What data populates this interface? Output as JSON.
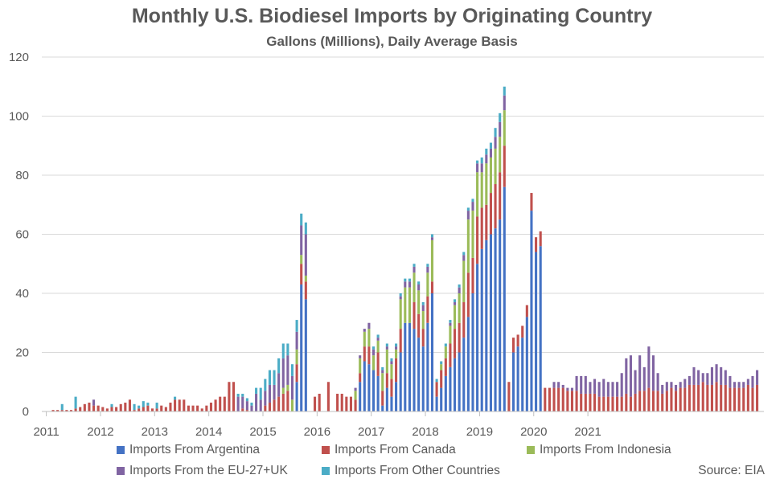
{
  "chart_data": {
    "type": "bar",
    "stacked": true,
    "title": "Monthly U.S. Biodiesel Imports by Originating Country",
    "subtitle": "Gallons (Millions), Daily Average Basis",
    "ylim": [
      0,
      120
    ],
    "yticks": [
      0,
      20,
      40,
      60,
      80,
      100,
      120
    ],
    "xticks": [
      "2011",
      "2012",
      "2013",
      "2014",
      "2015",
      "2016",
      "2017",
      "2018",
      "2019",
      "2020",
      "2021"
    ],
    "start": "2011-01",
    "grid": true,
    "legend_position": "bottom",
    "source": "Source: EIA",
    "series": [
      {
        "name": "Imports From Argentina",
        "color": "#4472C4",
        "values": [
          0,
          0,
          0,
          0,
          0,
          0,
          0,
          0,
          0,
          0,
          0,
          0,
          0,
          0,
          0,
          0,
          0,
          0,
          0,
          0,
          0,
          0,
          0,
          0,
          0,
          0,
          0,
          0,
          0,
          0,
          0,
          0,
          0,
          0,
          0,
          0,
          0,
          0,
          0,
          0,
          0,
          0,
          0,
          0,
          0,
          0,
          0,
          0,
          0,
          0,
          0,
          0,
          0,
          0,
          0,
          10,
          43,
          38,
          0,
          0,
          0,
          0,
          0,
          0,
          0,
          0,
          0,
          0,
          0,
          10,
          17,
          16,
          14,
          12,
          2,
          8,
          5,
          10,
          20,
          30,
          30,
          28,
          25,
          22,
          30,
          40,
          5,
          8,
          12,
          15,
          18,
          20,
          25,
          32,
          40,
          50,
          55,
          58,
          60,
          62,
          65,
          76,
          0,
          20,
          22,
          25,
          32,
          68,
          54,
          56,
          0,
          0,
          0,
          0,
          0,
          0,
          0,
          0,
          0,
          0,
          0,
          0,
          0,
          0,
          0,
          0,
          0,
          0,
          0,
          0,
          0,
          0,
          0,
          0,
          0,
          0,
          0,
          0,
          0,
          0,
          0,
          0,
          0,
          0,
          0,
          0,
          0,
          0,
          0,
          0,
          0,
          0,
          0,
          0,
          0,
          0,
          0,
          0
        ]
      },
      {
        "name": "Imports From Canada",
        "color": "#C0504D",
        "values": [
          0,
          0.5,
          0.5,
          0.5,
          0.5,
          0.5,
          1,
          1.5,
          2.5,
          3,
          2,
          2,
          1.5,
          1,
          1.5,
          1.5,
          2.5,
          3,
          4,
          0.5,
          1,
          1.5,
          2,
          1,
          1,
          2,
          1.5,
          3,
          4,
          4,
          4,
          2,
          2,
          2,
          1,
          2,
          3,
          4,
          5,
          5,
          10,
          10,
          0,
          1,
          0.5,
          0,
          0,
          0,
          2,
          3,
          4,
          5,
          6,
          7,
          0,
          6,
          7,
          6,
          0,
          5,
          6,
          0,
          10,
          0,
          6,
          6,
          5,
          5,
          4,
          3,
          5,
          6,
          0,
          8,
          5,
          5,
          6,
          8,
          8,
          0,
          0,
          9,
          8,
          6,
          9,
          4,
          5,
          6,
          6,
          8,
          10,
          10,
          12,
          15,
          12,
          16,
          14,
          12,
          14,
          15,
          16,
          14,
          10,
          5,
          4,
          4,
          4,
          6,
          5,
          5,
          8,
          8,
          8,
          8,
          8,
          7,
          7,
          7,
          6,
          6,
          6,
          6,
          5,
          5,
          5,
          5,
          5,
          5,
          6,
          5,
          6,
          7,
          7,
          8,
          7,
          7,
          6,
          7,
          8,
          7,
          8,
          8,
          9,
          9,
          9,
          10,
          9,
          9,
          10,
          9,
          9,
          8,
          8,
          8,
          8,
          9,
          8,
          9,
          10,
          10,
          9,
          7,
          9,
          9
        ]
      },
      {
        "name": "Imports From Indonesia",
        "color": "#9BBB59",
        "values": [
          0,
          0,
          0,
          0,
          0,
          0,
          0,
          0,
          0,
          0,
          0,
          0,
          0,
          0,
          0,
          0,
          0,
          0,
          0,
          0,
          0,
          0,
          0,
          0,
          0,
          0,
          0,
          0,
          0,
          0,
          0,
          0,
          0,
          0,
          0,
          0,
          0,
          0,
          0,
          0,
          0,
          0,
          0,
          0,
          0,
          0,
          0,
          0,
          0,
          0,
          0,
          0,
          2,
          2,
          4,
          5,
          3,
          2,
          0,
          0,
          0,
          0,
          0,
          0,
          0,
          0,
          0,
          0,
          3,
          5,
          5,
          6,
          5,
          4,
          6,
          8,
          5,
          3,
          10,
          12,
          12,
          10,
          8,
          6,
          8,
          14,
          0,
          2,
          4,
          6,
          8,
          10,
          14,
          18,
          16,
          15,
          12,
          14,
          12,
          12,
          12,
          12,
          0,
          0,
          0,
          0,
          0,
          0,
          0,
          0,
          0,
          0,
          0,
          0,
          0,
          0,
          0,
          0,
          0,
          0,
          0,
          0,
          0,
          0,
          0,
          0,
          0,
          0,
          0,
          0,
          0,
          0,
          0,
          0,
          0,
          0,
          0,
          0,
          0,
          0,
          0,
          0,
          0,
          0,
          0,
          0,
          0,
          0,
          0,
          0,
          0,
          0,
          0,
          0,
          0,
          0,
          0,
          0,
          0,
          0
        ]
      },
      {
        "name": "Imports From the EU-27+UK",
        "color": "#8064A2",
        "values": [
          0,
          0,
          0,
          0,
          0,
          0,
          0,
          0,
          0,
          0,
          2,
          0,
          0,
          0,
          0,
          0,
          0,
          0,
          0,
          0,
          0,
          0,
          0,
          0,
          0,
          0,
          0,
          0,
          0,
          0,
          0,
          0,
          0,
          0,
          0,
          0,
          0,
          0,
          0,
          0,
          0,
          0,
          5,
          4,
          3,
          2,
          6,
          4,
          5,
          6,
          5,
          8,
          10,
          10,
          8,
          6,
          10,
          14,
          0,
          0,
          0,
          0,
          0,
          0,
          0,
          0,
          0,
          0,
          1,
          1,
          1,
          2,
          2,
          1,
          1,
          1,
          1,
          1,
          1,
          2,
          2,
          2,
          2,
          2,
          2,
          1,
          0,
          0,
          0,
          1,
          1,
          2,
          2,
          3,
          3,
          3,
          3,
          3,
          3,
          4,
          5,
          5,
          0,
          0,
          0,
          0,
          0,
          0,
          0,
          0,
          0,
          0,
          2,
          2,
          1,
          1,
          1,
          5,
          6,
          6,
          4,
          5,
          5,
          6,
          5,
          5,
          5,
          8,
          12,
          14,
          8,
          12,
          8,
          14,
          12,
          6,
          3,
          3,
          2,
          2,
          2,
          3,
          3,
          6,
          5,
          3,
          4,
          6,
          6,
          6,
          5,
          4,
          2,
          2,
          2,
          2,
          4,
          5,
          6,
          4,
          2,
          3,
          3,
          8,
          2
        ]
      },
      {
        "name": "Imports From Other Countries",
        "color": "#4BACC6",
        "values": [
          0,
          0,
          0,
          2,
          0,
          0,
          4,
          0,
          0,
          0,
          0,
          0,
          0,
          0,
          1,
          0,
          0,
          0,
          0,
          2,
          1,
          2,
          1,
          0,
          2,
          0,
          0,
          0,
          1,
          0,
          0,
          0,
          0,
          0,
          0,
          0,
          0,
          0,
          0,
          0,
          0,
          0,
          1,
          1,
          1,
          1,
          2,
          4,
          4,
          5,
          5,
          5,
          5,
          4,
          4,
          4,
          4,
          4,
          0,
          0,
          0,
          0,
          0,
          0,
          0,
          0,
          0,
          0,
          0,
          0,
          0,
          0,
          1,
          1,
          1,
          1,
          1,
          1,
          1,
          1,
          1,
          1,
          1,
          1,
          1,
          1,
          1,
          1,
          1,
          1,
          1,
          1,
          1,
          1,
          1,
          1,
          2,
          2,
          2,
          3,
          3,
          3,
          0,
          0,
          0,
          0,
          0,
          0,
          0,
          0,
          0,
          0,
          0,
          0,
          0,
          0,
          0,
          0,
          0,
          0,
          0,
          0,
          0,
          0,
          0,
          0,
          0,
          0,
          0,
          0,
          0,
          0,
          0,
          0,
          0,
          0,
          0,
          0,
          0,
          0,
          0,
          0,
          0,
          0,
          0,
          0,
          0,
          0,
          0,
          0,
          0,
          0,
          0,
          0,
          0,
          0,
          0,
          0,
          0,
          0
        ]
      }
    ]
  }
}
